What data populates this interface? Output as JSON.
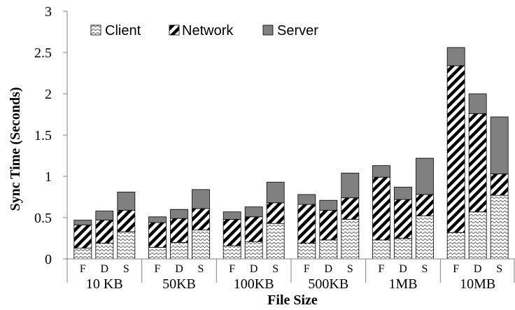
{
  "chart_data": {
    "type": "bar",
    "stacked": true,
    "xlabel": "File Size",
    "ylabel": "Sync Time (Seconds)",
    "ylim": [
      0,
      3
    ],
    "yticks": [
      "0",
      "0.5",
      "1",
      "1.5",
      "2",
      "2.5",
      "3"
    ],
    "legend_position": "top-left",
    "grid": false,
    "groups": [
      "10 KB",
      "50KB",
      "100KB",
      "500KB",
      "1MB",
      "10MB"
    ],
    "sub_categories": [
      "F",
      "D",
      "S"
    ],
    "series": [
      {
        "name": "Client",
        "pattern": "wave",
        "color": "#000000",
        "values": [
          [
            0.13,
            0.19,
            0.33
          ],
          [
            0.14,
            0.2,
            0.35
          ],
          [
            0.16,
            0.21,
            0.43
          ],
          [
            0.19,
            0.23,
            0.48
          ],
          [
            0.23,
            0.25,
            0.52
          ],
          [
            0.32,
            0.57,
            0.77
          ]
        ]
      },
      {
        "name": "Network",
        "pattern": "diagonal",
        "color": "#000000",
        "values": [
          [
            0.28,
            0.28,
            0.26
          ],
          [
            0.3,
            0.29,
            0.26
          ],
          [
            0.32,
            0.3,
            0.25
          ],
          [
            0.47,
            0.36,
            0.26
          ],
          [
            0.76,
            0.47,
            0.26
          ],
          [
            2.02,
            1.19,
            0.26
          ]
        ]
      },
      {
        "name": "Server",
        "pattern": "solid",
        "color": "#808080",
        "values": [
          [
            0.06,
            0.11,
            0.22
          ],
          [
            0.07,
            0.11,
            0.23
          ],
          [
            0.09,
            0.12,
            0.25
          ],
          [
            0.12,
            0.12,
            0.3
          ],
          [
            0.14,
            0.15,
            0.44
          ],
          [
            0.22,
            0.24,
            0.69
          ]
        ]
      }
    ]
  }
}
